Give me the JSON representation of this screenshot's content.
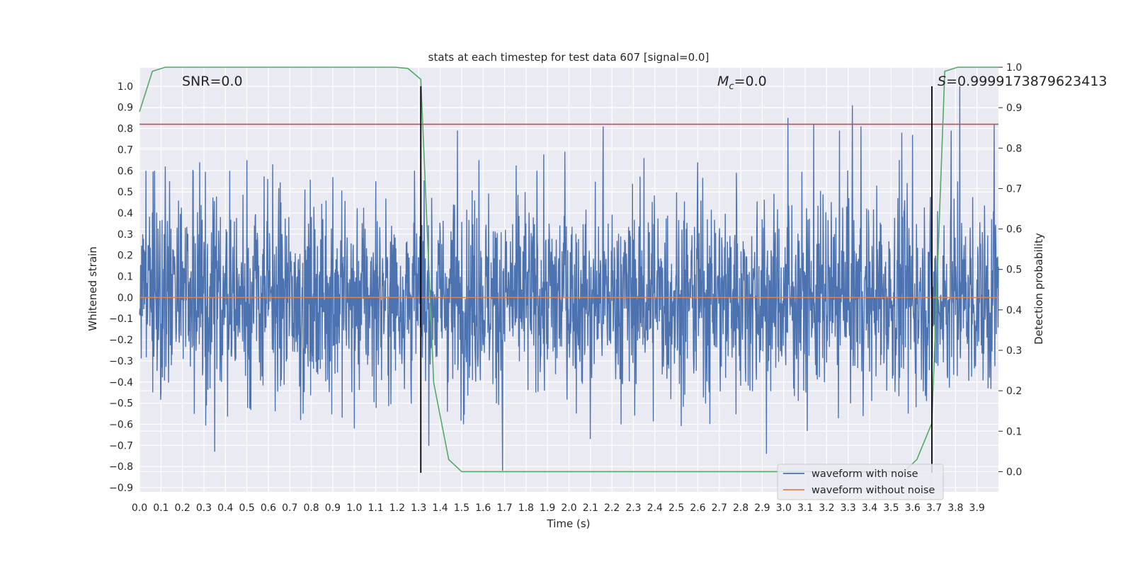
{
  "chart_data": {
    "type": "line",
    "title": "stats at each timestep for test data 607 [signal=0.0]",
    "xlabel": "Time (s)",
    "ylabel": "Whitened strain",
    "y2label": "Detection probability",
    "xlim": [
      0.0,
      4.0
    ],
    "ylim": [
      -0.92,
      1.09
    ],
    "y2lim": [
      -0.05,
      1.0
    ],
    "x_ticks": [
      "0.0",
      "0.1",
      "0.2",
      "0.3",
      "0.4",
      "0.5",
      "0.6",
      "0.7",
      "0.8",
      "0.9",
      "1.0",
      "1.1",
      "1.2",
      "1.3",
      "1.4",
      "1.5",
      "1.6",
      "1.7",
      "1.8",
      "1.9",
      "2.0",
      "2.1",
      "2.2",
      "2.3",
      "2.4",
      "2.5",
      "2.6",
      "2.7",
      "2.8",
      "2.9",
      "3.0",
      "3.1",
      "3.2",
      "3.3",
      "3.4",
      "3.5",
      "3.6",
      "3.7",
      "3.8",
      "3.9"
    ],
    "y_ticks": [
      "1.0",
      "0.9",
      "0.8",
      "0.7",
      "0.6",
      "0.5",
      "0.4",
      "0.3",
      "0.2",
      "0.1",
      "0.0",
      "−0.1",
      "−0.2",
      "−0.3",
      "−0.4",
      "−0.5",
      "−0.6",
      "−0.7",
      "−0.8",
      "−0.9"
    ],
    "y2_ticks": [
      "1.0",
      "0.9",
      "0.8",
      "0.7",
      "0.6",
      "0.5",
      "0.4",
      "0.3",
      "0.2",
      "0.1",
      "0.0"
    ],
    "annotations": {
      "snr": "SNR=0.0",
      "mc_symbol": "M",
      "mc_sub": "c",
      "mc_value": "=0.0",
      "s_symbol": "S",
      "s_value": "=0.9999173879623413"
    },
    "legend": {
      "placement": "lower-right",
      "entries": [
        "waveform with noise",
        "waveform without noise"
      ]
    },
    "grid": true,
    "noise_spikes": [
      {
        "x": 0.03,
        "y": 0.6
      },
      {
        "x": 0.07,
        "y": 0.6
      },
      {
        "x": 0.1,
        "y": -0.45
      },
      {
        "x": 0.12,
        "y": 0.62
      },
      {
        "x": 0.14,
        "y": 0.55
      },
      {
        "x": 0.28,
        "y": 0.64
      },
      {
        "x": 0.35,
        "y": -0.73
      },
      {
        "x": 0.42,
        "y": 0.6
      },
      {
        "x": 0.5,
        "y": 0.65
      },
      {
        "x": 0.62,
        "y": 0.63
      },
      {
        "x": 0.75,
        "y": -0.58
      },
      {
        "x": 0.9,
        "y": 0.57
      },
      {
        "x": 1.0,
        "y": -0.62
      },
      {
        "x": 1.1,
        "y": 0.55
      },
      {
        "x": 1.28,
        "y": 0.6
      },
      {
        "x": 1.48,
        "y": 0.79
      },
      {
        "x": 1.58,
        "y": 0.65
      },
      {
        "x": 1.69,
        "y": -0.82
      },
      {
        "x": 1.85,
        "y": 0.6
      },
      {
        "x": 1.98,
        "y": 0.69
      },
      {
        "x": 2.1,
        "y": -0.67
      },
      {
        "x": 2.16,
        "y": 0.81
      },
      {
        "x": 2.35,
        "y": 0.66
      },
      {
        "x": 2.6,
        "y": 0.64
      },
      {
        "x": 2.78,
        "y": 0.59
      },
      {
        "x": 2.92,
        "y": -0.74
      },
      {
        "x": 3.02,
        "y": 0.85
      },
      {
        "x": 3.14,
        "y": 0.82
      },
      {
        "x": 3.26,
        "y": 0.79
      },
      {
        "x": 3.32,
        "y": 0.91
      },
      {
        "x": 3.36,
        "y": 0.81
      },
      {
        "x": 3.55,
        "y": 0.78
      },
      {
        "x": 3.6,
        "y": 0.77
      },
      {
        "x": 3.78,
        "y": 0.79
      },
      {
        "x": 3.82,
        "y": 1.0
      },
      {
        "x": 3.98,
        "y": 0.82
      }
    ],
    "series": [
      {
        "name": "waveform with noise",
        "color": "#4c72b0",
        "axis": "left",
        "envelope": 0.3
      },
      {
        "name": "waveform without noise",
        "color": "#dd8452",
        "axis": "left",
        "x": [
          0.0,
          4.0
        ],
        "y": [
          0.0,
          0.0
        ]
      },
      {
        "color": "#55a868",
        "axis": "right",
        "x": [
          0.0,
          0.06,
          0.12,
          0.19,
          0.25,
          0.31,
          0.37,
          0.44,
          0.5,
          0.56,
          0.62,
          0.69,
          0.75,
          0.81,
          0.87,
          0.94,
          1.0,
          1.06,
          1.12,
          1.19,
          1.25,
          1.31,
          1.37,
          1.44,
          1.5,
          1.56,
          1.62,
          1.69,
          1.75,
          1.81,
          1.87,
          1.94,
          2.0,
          2.06,
          2.12,
          2.19,
          2.25,
          2.31,
          2.37,
          2.44,
          2.5,
          2.56,
          2.62,
          2.69,
          2.75,
          2.81,
          2.87,
          2.94,
          3.0,
          3.06,
          3.12,
          3.19,
          3.25,
          3.31,
          3.37,
          3.44,
          3.5,
          3.56,
          3.62,
          3.69,
          3.75,
          3.81,
          3.87,
          3.94,
          4.0
        ],
        "y": [
          0.89,
          0.99,
          1.0,
          1.0,
          1.0,
          1.0,
          1.0,
          1.0,
          1.0,
          1.0,
          1.0,
          1.0,
          1.0,
          1.0,
          1.0,
          1.0,
          1.0,
          1.0,
          1.0,
          1.0,
          0.997,
          0.97,
          0.22,
          0.03,
          0.0,
          0.0,
          0.0,
          0.0,
          0.0,
          0.0,
          0.0,
          0.0,
          0.0,
          0.0,
          0.0,
          0.0,
          0.0,
          0.0,
          0.0,
          0.0,
          0.0,
          0.0,
          0.0,
          0.0,
          0.0,
          0.0,
          0.0,
          0.0,
          0.0,
          0.0,
          0.0,
          0.0,
          0.0,
          0.0,
          0.0,
          0.0,
          0.0,
          0.0,
          0.03,
          0.12,
          0.99,
          1.0,
          1.0,
          1.0,
          1.0
        ]
      },
      {
        "color": "#c44e52",
        "axis": "left",
        "x": [
          0.0,
          4.0
        ],
        "y": [
          0.82,
          0.82
        ]
      }
    ],
    "vlines": [
      {
        "x": 1.31,
        "y0": -0.83,
        "y1": 1.0,
        "color": "#000000"
      },
      {
        "x": 3.69,
        "y0": -0.83,
        "y1": 1.0,
        "color": "#000000"
      }
    ],
    "colors": {
      "plot_background": "#eaeaf2",
      "grid": "#ffffff"
    }
  }
}
